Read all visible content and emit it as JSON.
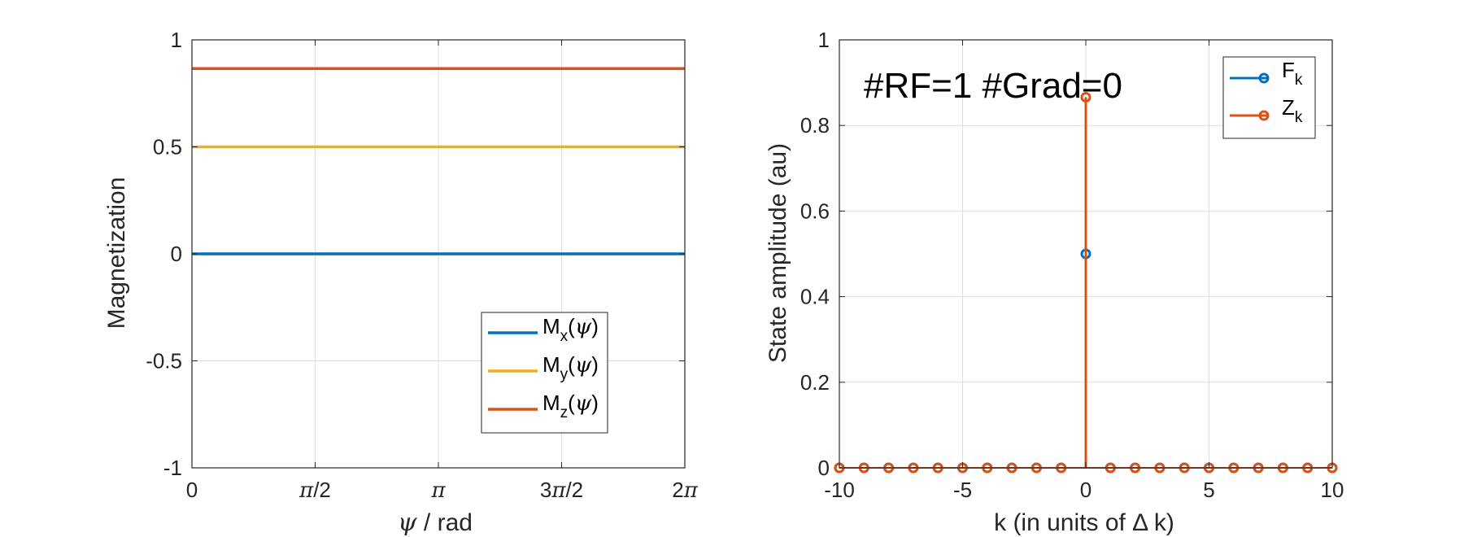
{
  "colors": {
    "blue": "#0072BD",
    "yellow": "#EDB120",
    "orange": "#D95319",
    "grid": "#DFDFDF",
    "axis": "#262626"
  },
  "chart_data": [
    {
      "type": "line",
      "xlabel_symbol": "ψ",
      "xlabel_rest": " / rad",
      "ylabel": "Magnetization",
      "xlim": [
        0,
        6.283185307
      ],
      "ylim": [
        -1,
        1
      ],
      "grid": true,
      "x_ticks": [
        0,
        1.570796327,
        3.141592654,
        4.71238898,
        6.283185307
      ],
      "x_tick_labels": [
        "0",
        "π/2",
        "π",
        "3π/2",
        "2π"
      ],
      "y_ticks": [
        -1,
        -0.5,
        0,
        0.5,
        1
      ],
      "y_tick_labels": [
        "-1",
        "-0.5",
        "0",
        "0.5",
        "1"
      ],
      "legend_position": "bottom-right",
      "series": [
        {
          "name": "M_x(ψ)",
          "main": "M",
          "sub": "x",
          "arg": "(ψ)",
          "color": "#0072BD",
          "x": [
            0,
            6.283185307
          ],
          "y": [
            0,
            0
          ]
        },
        {
          "name": "M_y(ψ)",
          "main": "M",
          "sub": "y",
          "arg": "(ψ)",
          "color": "#EDB120",
          "x": [
            0,
            6.283185307
          ],
          "y": [
            0.5,
            0.5
          ]
        },
        {
          "name": "M_z(ψ)",
          "main": "M",
          "sub": "z",
          "arg": "(ψ)",
          "color": "#D95319",
          "x": [
            0,
            6.283185307
          ],
          "y": [
            0.866,
            0.866
          ]
        }
      ]
    },
    {
      "type": "stem",
      "annotation": "#RF=1 #Grad=0",
      "xlabel": "k (in units of Δ k)",
      "ylabel": "State amplitude (au)",
      "xlim": [
        -10,
        10
      ],
      "ylim": [
        0,
        1
      ],
      "grid": true,
      "x_ticks": [
        -10,
        -5,
        0,
        5,
        10
      ],
      "x_tick_labels": [
        "-10",
        "-5",
        "0",
        "5",
        "10"
      ],
      "y_ticks": [
        0,
        0.2,
        0.4,
        0.6,
        0.8,
        1
      ],
      "y_tick_labels": [
        "0",
        "0.2",
        "0.4",
        "0.6",
        "0.8",
        "1"
      ],
      "legend_position": "top-right",
      "series": [
        {
          "name": "F_k",
          "main": "F",
          "sub": "k",
          "color": "#0072BD",
          "x": [
            -10,
            -9,
            -8,
            -7,
            -6,
            -5,
            -4,
            -3,
            -2,
            -1,
            0,
            1,
            2,
            3,
            4,
            5,
            6,
            7,
            8,
            9,
            10
          ],
          "y": [
            0,
            0,
            0,
            0,
            0,
            0,
            0,
            0,
            0,
            0,
            0.5,
            0,
            0,
            0,
            0,
            0,
            0,
            0,
            0,
            0,
            0
          ]
        },
        {
          "name": "Z_k",
          "main": "Z",
          "sub": "k",
          "color": "#D95319",
          "x": [
            -10,
            -9,
            -8,
            -7,
            -6,
            -5,
            -4,
            -3,
            -2,
            -1,
            0,
            1,
            2,
            3,
            4,
            5,
            6,
            7,
            8,
            9,
            10
          ],
          "y": [
            0,
            0,
            0,
            0,
            0,
            0,
            0,
            0,
            0,
            0,
            0.866,
            0,
            0,
            0,
            0,
            0,
            0,
            0,
            0,
            0,
            0
          ]
        }
      ]
    }
  ]
}
